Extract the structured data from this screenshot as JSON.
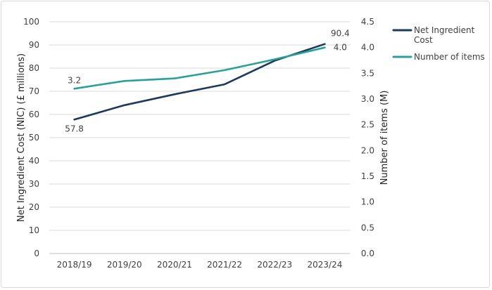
{
  "chart_data": {
    "type": "line",
    "categories": [
      "2018/19",
      "2019/20",
      "2020/21",
      "2021/22",
      "2022/23",
      "2023/24"
    ],
    "series": [
      {
        "name": "Net Ingredient Cost",
        "axis": "left",
        "color": "#1c3a5e",
        "values": [
          57.8,
          64.0,
          68.7,
          73.0,
          83.2,
          90.4
        ],
        "labels": {
          "0": "57.8",
          "5": "90.4"
        }
      },
      {
        "name": "Number of items",
        "axis": "right",
        "color": "#2aa198",
        "values": [
          3.2,
          3.35,
          3.4,
          3.56,
          3.77,
          4.0
        ],
        "labels": {
          "0": "3.2",
          "5": "4.0"
        }
      }
    ],
    "y_left": {
      "label": "Net Ingredient Cost (NIC) (£ millions)",
      "ylim": [
        0,
        100
      ],
      "ticks": [
        "0",
        "10",
        "20",
        "30",
        "40",
        "50",
        "60",
        "70",
        "80",
        "90",
        "100"
      ]
    },
    "y_right": {
      "label": "Number of items (M)",
      "ylim": [
        0,
        4.5
      ],
      "ticks": [
        "0.0",
        "0.5",
        "1.0",
        "1.5",
        "2.0",
        "2.5",
        "3.0",
        "3.5",
        "4.0",
        "4.5"
      ]
    },
    "legend_position": "right",
    "grid": true
  }
}
